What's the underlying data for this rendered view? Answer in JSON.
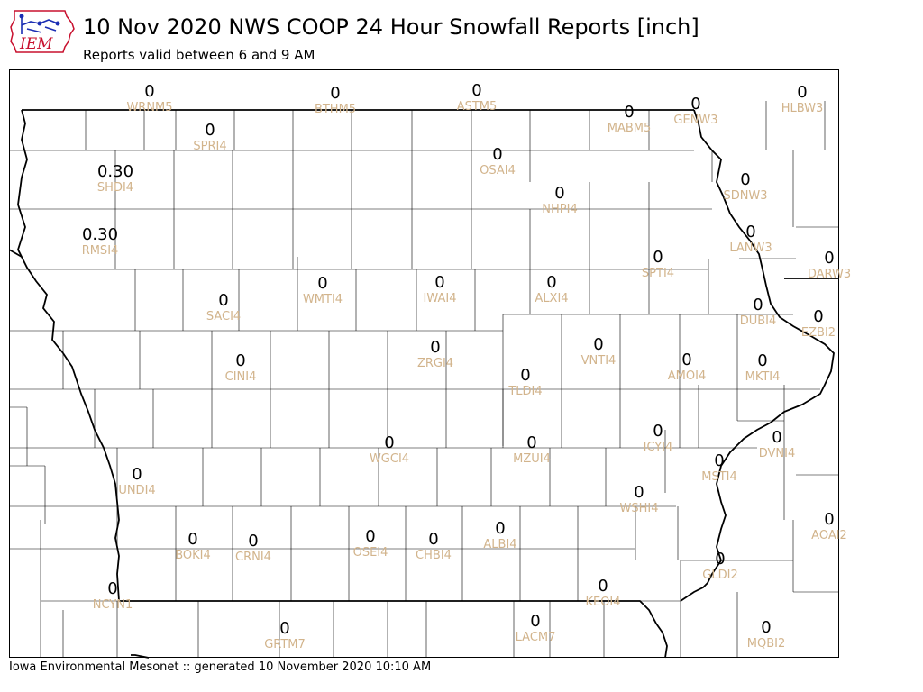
{
  "header": {
    "title": "10 Nov 2020 NWS COOP 24 Hour Snowfall Reports [inch]",
    "subtitle": "Reports valid between 6 and 9 AM"
  },
  "logo": {
    "text": "IEM",
    "icon": "iowa-state-logo-icon"
  },
  "footer": {
    "text": "Iowa Environmental Mesonet :: generated 10 November 2020 10:10 AM"
  },
  "colors": {
    "station_label": "#d2b48c",
    "value": "#000000",
    "border": "#000000",
    "logo_red": "#c8102e",
    "logo_blue": "#1a2db3"
  },
  "stations": [
    {
      "id": "WRNM5",
      "value": "0"
    },
    {
      "id": "BTHM5",
      "value": "0"
    },
    {
      "id": "ASTM5",
      "value": "0"
    },
    {
      "id": "MABM5",
      "value": "0"
    },
    {
      "id": "GENW3",
      "value": "0"
    },
    {
      "id": "HLBW3",
      "value": "0"
    },
    {
      "id": "SPRI4",
      "value": "0"
    },
    {
      "id": "SHDI4",
      "value": "0.30"
    },
    {
      "id": "OSAI4",
      "value": "0"
    },
    {
      "id": "NHPI4",
      "value": "0"
    },
    {
      "id": "SDNW3",
      "value": "0"
    },
    {
      "id": "RMSI4",
      "value": "0.30"
    },
    {
      "id": "LANW3",
      "value": "0"
    },
    {
      "id": "SPTI4",
      "value": "0"
    },
    {
      "id": "DARW3",
      "value": "0"
    },
    {
      "id": "WMTI4",
      "value": "0"
    },
    {
      "id": "IWAI4",
      "value": "0"
    },
    {
      "id": "ALXI4",
      "value": "0"
    },
    {
      "id": "SACI4",
      "value": "0"
    },
    {
      "id": "DUBI4",
      "value": "0"
    },
    {
      "id": "EZBI2",
      "value": "0"
    },
    {
      "id": "VNTI4",
      "value": "0"
    },
    {
      "id": "CINI4",
      "value": "0"
    },
    {
      "id": "ZRGI4",
      "value": "0"
    },
    {
      "id": "AMOI4",
      "value": "0"
    },
    {
      "id": "MKTI4",
      "value": "0"
    },
    {
      "id": "TLDI4",
      "value": "0"
    },
    {
      "id": "ICYI4",
      "value": "0"
    },
    {
      "id": "WGCI4",
      "value": "0"
    },
    {
      "id": "MZUI4",
      "value": "0"
    },
    {
      "id": "DVNI4",
      "value": "0"
    },
    {
      "id": "UNDI4",
      "value": "0"
    },
    {
      "id": "MSTI4",
      "value": "0"
    },
    {
      "id": "WSHI4",
      "value": "0"
    },
    {
      "id": "AOAI2",
      "value": "0"
    },
    {
      "id": "ALBI4",
      "value": "0"
    },
    {
      "id": "BOKI4",
      "value": "0"
    },
    {
      "id": "CRNI4",
      "value": "0"
    },
    {
      "id": "OSEI4",
      "value": "0"
    },
    {
      "id": "CHBI4",
      "value": "0"
    },
    {
      "id": "GLDI2",
      "value": "0"
    },
    {
      "id": "NCYN1",
      "value": "0"
    },
    {
      "id": "KEOI4",
      "value": "0"
    },
    {
      "id": "LACM7",
      "value": "0"
    },
    {
      "id": "GRTM7",
      "value": "0"
    },
    {
      "id": "MQBI2",
      "value": "0"
    }
  ]
}
